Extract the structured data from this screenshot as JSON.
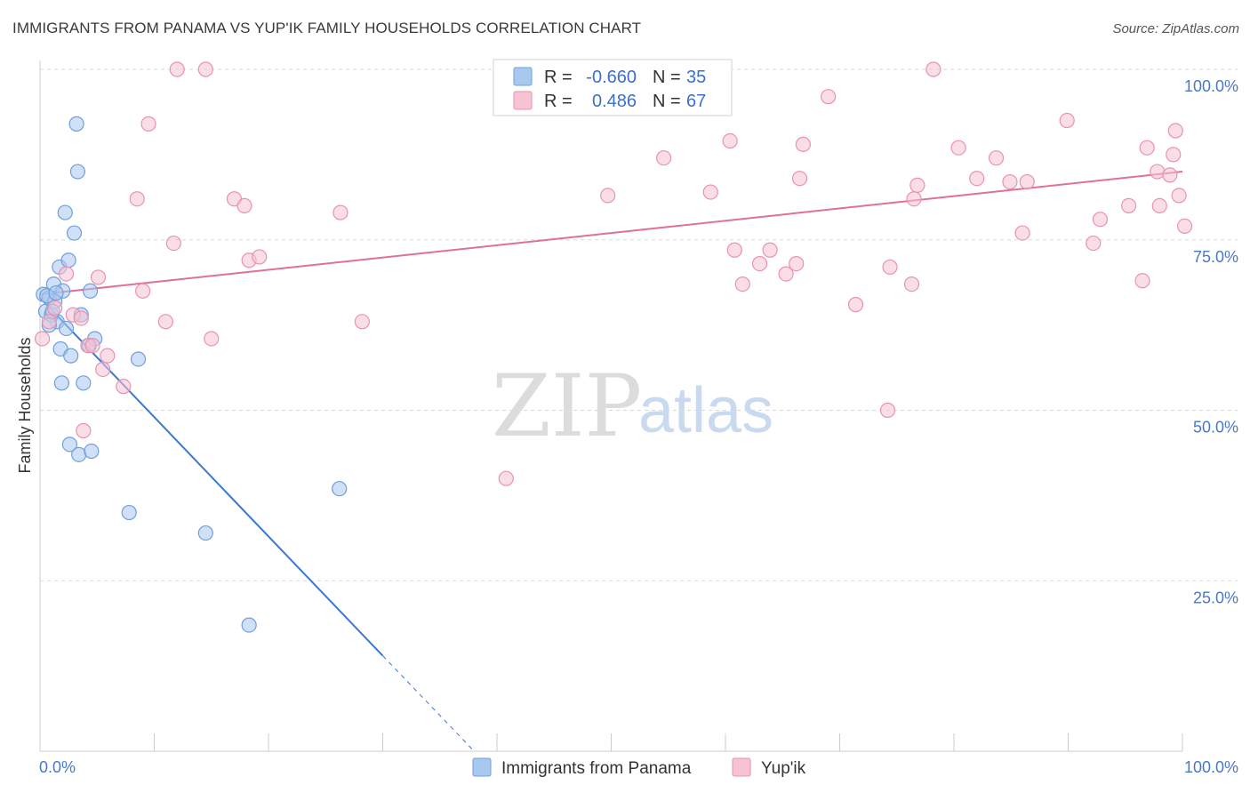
{
  "title": "IMMIGRANTS FROM PANAMA VS YUP'IK FAMILY HOUSEHOLDS CORRELATION CHART",
  "source": "Source: ZipAtlas.com",
  "watermark": {
    "zip": "ZIP",
    "atlas": "atlas"
  },
  "colors": {
    "blue_fill": "#a9c8f0",
    "blue_stroke": "#6f9fdc",
    "blue_line": "#3a78d4",
    "pink_fill": "#f6c3d3",
    "pink_stroke": "#e992b0",
    "pink_line": "#e0709a",
    "tick_label": "#4a78c8",
    "grid": "#d9d9d9"
  },
  "legend": {
    "rows": [
      {
        "r_label": "R =",
        "r_value": "-0.660",
        "n_label": "N =",
        "n_value": "35"
      },
      {
        "r_label": "R =",
        "r_value": "0.486",
        "n_label": "N =",
        "n_value": "67"
      }
    ]
  },
  "bottom_legend": [
    "Immigrants from Panama",
    "Yup'ik"
  ],
  "chart_data": {
    "type": "scatter",
    "xlabel": "",
    "ylabel": "Family Households",
    "xlim": [
      0,
      100
    ],
    "ylim": [
      0,
      100
    ],
    "x_tick_labels": [
      "0.0%",
      "100.0%"
    ],
    "y_tick_labels": [
      "25.0%",
      "50.0%",
      "75.0%",
      "100.0%"
    ],
    "y_ticks": [
      25,
      50,
      75,
      100
    ],
    "grid": "horizontal dashed",
    "series": [
      {
        "name": "Immigrants from Panama",
        "color": "blue",
        "trend": {
          "x0": 0,
          "y0": 66.5,
          "x1": 30,
          "y1": 14,
          "dashed_to_x": 38,
          "dashed_to_y": 0
        },
        "points": [
          [
            0.3,
            67
          ],
          [
            0.5,
            64.5
          ],
          [
            0.8,
            66.5
          ],
          [
            1.0,
            64
          ],
          [
            1.2,
            68.5
          ],
          [
            1.3,
            66
          ],
          [
            1.5,
            63
          ],
          [
            1.7,
            71
          ],
          [
            1.8,
            59
          ],
          [
            1.9,
            54
          ],
          [
            2.0,
            67.5
          ],
          [
            2.2,
            79
          ],
          [
            2.3,
            62
          ],
          [
            2.5,
            72
          ],
          [
            2.6,
            45
          ],
          [
            2.7,
            58
          ],
          [
            3.0,
            76
          ],
          [
            3.2,
            92
          ],
          [
            3.3,
            85
          ],
          [
            3.4,
            43.5
          ],
          [
            3.6,
            64
          ],
          [
            3.8,
            54
          ],
          [
            4.3,
            59.5
          ],
          [
            4.4,
            67.5
          ],
          [
            4.5,
            44
          ],
          [
            4.8,
            60.5
          ],
          [
            7.8,
            35
          ],
          [
            8.6,
            57.5
          ],
          [
            14.5,
            32
          ],
          [
            18.3,
            18.5
          ],
          [
            26.2,
            38.5
          ],
          [
            0.8,
            62.5
          ],
          [
            1.1,
            64.5
          ],
          [
            0.6,
            66.8
          ],
          [
            1.4,
            67.2
          ]
        ]
      },
      {
        "name": "Yup'ik",
        "color": "pink",
        "trend": {
          "x0": 0,
          "y0": 67,
          "x1": 100,
          "y1": 85
        },
        "points": [
          [
            0.2,
            60.5
          ],
          [
            0.8,
            63
          ],
          [
            1.3,
            65
          ],
          [
            2.3,
            70
          ],
          [
            2.9,
            64
          ],
          [
            3.6,
            63.5
          ],
          [
            3.8,
            47
          ],
          [
            4.2,
            59.5
          ],
          [
            4.6,
            59.5
          ],
          [
            5.1,
            69.5
          ],
          [
            5.5,
            56
          ],
          [
            5.9,
            58
          ],
          [
            7.3,
            53.5
          ],
          [
            8.5,
            81
          ],
          [
            9.0,
            67.5
          ],
          [
            9.5,
            92
          ],
          [
            11.0,
            63
          ],
          [
            11.7,
            74.5
          ],
          [
            12.0,
            100
          ],
          [
            14.5,
            100
          ],
          [
            15.0,
            60.5
          ],
          [
            17.0,
            81
          ],
          [
            17.9,
            80
          ],
          [
            18.3,
            72
          ],
          [
            19.2,
            72.5
          ],
          [
            26.3,
            79
          ],
          [
            28.2,
            63
          ],
          [
            40.8,
            40
          ],
          [
            49.7,
            81.5
          ],
          [
            54.6,
            87
          ],
          [
            58.7,
            82
          ],
          [
            60.4,
            89.5
          ],
          [
            60.8,
            73.5
          ],
          [
            61.5,
            68.5
          ],
          [
            63.0,
            71.5
          ],
          [
            63.9,
            73.5
          ],
          [
            65.3,
            70
          ],
          [
            66.2,
            71.5
          ],
          [
            66.5,
            84
          ],
          [
            66.8,
            89
          ],
          [
            69.0,
            96
          ],
          [
            71.4,
            65.5
          ],
          [
            74.2,
            50
          ],
          [
            74.4,
            71
          ],
          [
            76.3,
            68.5
          ],
          [
            76.5,
            81
          ],
          [
            76.8,
            83
          ],
          [
            78.2,
            100
          ],
          [
            80.4,
            88.5
          ],
          [
            82.0,
            84
          ],
          [
            83.7,
            87
          ],
          [
            84.9,
            83.5
          ],
          [
            86.4,
            83.5
          ],
          [
            86.0,
            76
          ],
          [
            89.9,
            92.5
          ],
          [
            92.2,
            74.5
          ],
          [
            92.8,
            78
          ],
          [
            95.3,
            80
          ],
          [
            96.5,
            69
          ],
          [
            96.9,
            88.5
          ],
          [
            97.8,
            85
          ],
          [
            98.0,
            80
          ],
          [
            98.9,
            84.5
          ],
          [
            99.2,
            87.5
          ],
          [
            99.4,
            91
          ],
          [
            99.7,
            81.5
          ],
          [
            100.2,
            77
          ]
        ]
      }
    ]
  }
}
